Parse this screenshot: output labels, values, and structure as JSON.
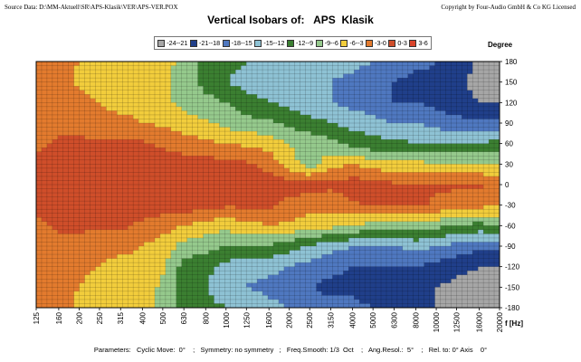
{
  "header": {
    "source": "Source Data:  D:\\MM-Aktuell\\SR\\APS-Klasik\\VER\\APS-VER.POX",
    "copyright": "Copyright by Four-Audio GmbH & Co KG   Licensed"
  },
  "title": "Vertical Isobars of:   APS  Klasik",
  "footer": {
    "parameters": "Parameters:   Cyclic Move:  0°    ;   Symmetry: no symmetry   ;   Freq.Smooth: 1/3  Oct    ;   Ang.Resol.:  5°    ;   Rel. to: 0° Axis    0°"
  },
  "chart_data": {
    "type": "heatmap",
    "title": "Vertical Isobars of:   APS  Klasik",
    "xlabel": "f [Hz]",
    "ylabel": "Degree",
    "x_scale": "log",
    "x_ticks": [
      "125",
      "160",
      "200",
      "250",
      "315",
      "400",
      "500",
      "630",
      "800",
      "1000",
      "1250",
      "1600",
      "2000",
      "2500",
      "3150",
      "4000",
      "5000",
      "6300",
      "8000",
      "10000",
      "12500",
      "16000",
      "20000"
    ],
    "y_ticks": [
      180,
      150,
      120,
      90,
      60,
      30,
      0,
      -30,
      -60,
      -90,
      -120,
      -150,
      -180
    ],
    "ylim": [
      -180,
      180
    ],
    "legend": [
      {
        "label": "-24--21",
        "color": "#a6a6a6"
      },
      {
        "label": "-21--18",
        "color": "#203f8a"
      },
      {
        "label": "-18--15",
        "color": "#4f78c0"
      },
      {
        "label": "-15--12",
        "color": "#8ec2d4"
      },
      {
        "label": "-12--9",
        "color": "#3b7f31"
      },
      {
        "label": "-9--6",
        "color": "#95c98c"
      },
      {
        "label": "-6--3",
        "color": "#f2cd3c"
      },
      {
        "label": "-3-0",
        "color": "#e37b2e"
      },
      {
        "label": "0-3",
        "color": "#cf4e2a"
      },
      {
        "label": "3-6",
        "color": "#d9432a"
      }
    ],
    "contours": {
      "axis_angles": [
        180,
        150,
        120,
        90,
        60,
        30,
        0,
        -30,
        -60,
        -90,
        -120,
        -150,
        -180
      ],
      "columns": [
        {
          "freq": 125,
          "levels": [
            -1.5,
            -1.5,
            -1.5,
            -1,
            -0.5,
            0.5,
            1.5,
            0.5,
            -0.5,
            -1,
            -1.5,
            -1.5,
            -1.5
          ]
        },
        {
          "freq": 160,
          "levels": [
            -2,
            -2,
            -1.5,
            -1,
            0.5,
            1.5,
            1.5,
            1.5,
            0.5,
            -1,
            -1.5,
            -2,
            -2
          ]
        },
        {
          "freq": 200,
          "levels": [
            -3,
            -3.5,
            -2,
            -1,
            0.5,
            1.5,
            1.5,
            1.5,
            0.5,
            -1,
            -2,
            -3,
            -3.5
          ]
        },
        {
          "freq": 250,
          "levels": [
            -4.5,
            -4.5,
            -3,
            -1.5,
            0.5,
            1.5,
            1.5,
            1.5,
            0.5,
            -1.5,
            -3,
            -4.5,
            -4.5
          ]
        },
        {
          "freq": 315,
          "levels": [
            -5,
            -5,
            -4.5,
            -2,
            0.5,
            1.5,
            1.5,
            1.5,
            0.5,
            -2,
            -4.5,
            -5,
            -5
          ]
        },
        {
          "freq": 400,
          "levels": [
            -4.5,
            -4.5,
            -4,
            -3,
            0.5,
            1.5,
            1.5,
            1.5,
            -0.5,
            -3,
            -4,
            -4.5,
            -4.5
          ]
        },
        {
          "freq": 500,
          "levels": [
            -4.5,
            -5,
            -5,
            -3.5,
            -0.5,
            1.5,
            1.5,
            1.5,
            -1.5,
            -4.5,
            -5.5,
            -6.5,
            -7
          ]
        },
        {
          "freq": 630,
          "levels": [
            -7,
            -8,
            -7,
            -4.5,
            -1.5,
            1.5,
            1.5,
            1.5,
            -3,
            -7,
            -10,
            -11,
            -10
          ]
        },
        {
          "freq": 800,
          "levels": [
            -10,
            -10,
            -8,
            -5.5,
            -2.5,
            1.5,
            1.5,
            1.5,
            -4.5,
            -8,
            -11,
            -12,
            -11
          ]
        },
        {
          "freq": 1000,
          "levels": [
            -11,
            -12,
            -9,
            -7,
            -3,
            0.5,
            1.5,
            0.5,
            -5,
            -9,
            -13,
            -14,
            -12
          ]
        },
        {
          "freq": 1250,
          "levels": [
            -12,
            -13,
            -11,
            -8,
            -3.5,
            0.5,
            1.5,
            0.5,
            -4,
            -9,
            -14,
            -15,
            -13
          ]
        },
        {
          "freq": 1600,
          "levels": [
            -12,
            -13,
            -12,
            -8,
            -4.5,
            -1,
            1.5,
            0.5,
            -3,
            -9,
            -14,
            -16,
            -14
          ]
        },
        {
          "freq": 2000,
          "levels": [
            -13,
            -14,
            -13,
            -10,
            -6,
            -4.5,
            1.5,
            -1,
            -3.5,
            -11,
            -15,
            -17,
            -15
          ]
        },
        {
          "freq": 2500,
          "levels": [
            -13,
            -15,
            -14,
            -11,
            -7,
            -8,
            1.5,
            -2,
            -4.5,
            -12,
            -16,
            -18,
            -16
          ]
        },
        {
          "freq": 3150,
          "levels": [
            -13,
            -15,
            -15,
            -12,
            -8,
            -4,
            0.5,
            -1.5,
            -5,
            -14,
            -17,
            -19,
            -17
          ]
        },
        {
          "freq": 4000,
          "levels": [
            -14,
            -16,
            -16,
            -13,
            -10,
            -3,
            1.5,
            -0.5,
            -6,
            -15,
            -18,
            -19,
            -17
          ]
        },
        {
          "freq": 5000,
          "levels": [
            -15,
            -17,
            -17,
            -14,
            -11,
            -4.5,
            1.5,
            0.5,
            -7,
            -15,
            -18,
            -20,
            -18
          ]
        },
        {
          "freq": 6300,
          "levels": [
            -16,
            -18,
            -18,
            -15,
            -11,
            -5,
            0.5,
            0.5,
            -7,
            -15,
            -18,
            -20,
            -19
          ]
        },
        {
          "freq": 8000,
          "levels": [
            -17,
            -19,
            -18,
            -15,
            -12,
            -5,
            0.5,
            0.5,
            -7,
            -14,
            -18,
            -21,
            -20
          ]
        },
        {
          "freq": 10000,
          "levels": [
            -18,
            -19,
            -19,
            -16,
            -12,
            -6,
            0.5,
            -0.5,
            -8,
            -15,
            -19,
            -21,
            -21
          ]
        },
        {
          "freq": 12500,
          "levels": [
            -19,
            -20,
            -20,
            -17,
            -12,
            -6,
            0.5,
            -1.5,
            -9,
            -16,
            -20,
            -22,
            -22
          ]
        },
        {
          "freq": 16000,
          "levels": [
            -22,
            -22,
            -21,
            -17,
            -12,
            -6,
            0.5,
            -2,
            -10,
            -17,
            -21,
            -22,
            -22
          ]
        },
        {
          "freq": 20000,
          "levels": [
            -22,
            -22,
            -21,
            -17,
            -11,
            -6,
            -1.5,
            -3,
            -9,
            -17,
            -21,
            -22,
            -22
          ]
        }
      ]
    }
  }
}
